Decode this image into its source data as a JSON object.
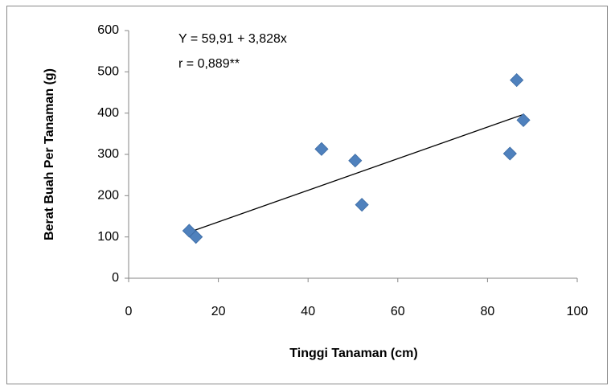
{
  "chart_data": {
    "type": "scatter",
    "annotations": [
      "Y = 59,91 + 3,828x",
      "r = 0,889**"
    ],
    "x_label": "Tinggi Tanaman (cm)",
    "y_label": "Berat Buah Per Tanaman (g)",
    "x": [
      13.5,
      15,
      43,
      50.5,
      52,
      85,
      86.5,
      88
    ],
    "values": [
      115,
      100,
      313,
      285,
      178,
      302,
      480,
      383
    ],
    "color": "#4f81bd",
    "trendline": {
      "intercept": 59.91,
      "slope": 3.828
    },
    "xlim": [
      0,
      100
    ],
    "xticks": [
      0,
      20,
      40,
      60,
      80,
      100
    ],
    "ylim": [
      0,
      600
    ],
    "yticks": [
      0,
      100,
      200,
      300,
      400,
      500,
      600
    ],
    "grid": false
  }
}
